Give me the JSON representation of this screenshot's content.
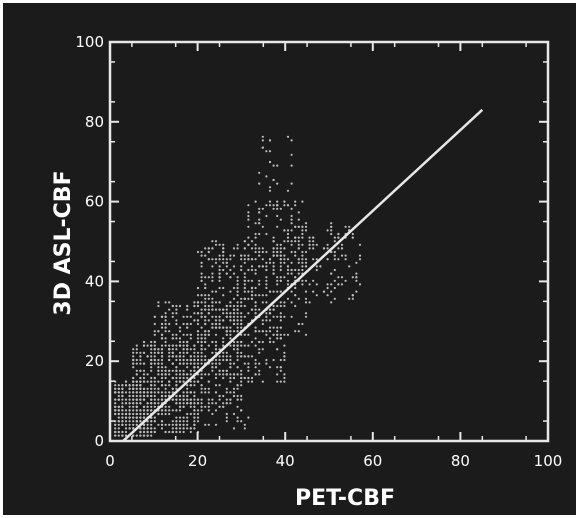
{
  "chart_data": {
    "type": "scatter",
    "title": "",
    "xlabel": "PET-CBF",
    "ylabel": "3D ASL-CBF",
    "xlim": [
      0,
      100
    ],
    "ylim": [
      0,
      100
    ],
    "xticks": [
      0,
      20,
      40,
      60,
      80,
      100
    ],
    "yticks": [
      0,
      20,
      40,
      60,
      80,
      100
    ],
    "grid": false,
    "legend": "none",
    "colors": {
      "background": "#1b1b1b",
      "foreground": "#e8e8e8"
    },
    "point_density_regions": [
      {
        "x_range": [
          0,
          10
        ],
        "y_range": [
          0,
          15
        ],
        "density": "dense"
      },
      {
        "x_range": [
          5,
          20
        ],
        "y_range": [
          2,
          25
        ],
        "density": "dense"
      },
      {
        "x_range": [
          10,
          30
        ],
        "y_range": [
          8,
          35
        ],
        "density": "dense"
      },
      {
        "x_range": [
          20,
          40
        ],
        "y_range": [
          15,
          50
        ],
        "density": "dense"
      },
      {
        "x_range": [
          30,
          45
        ],
        "y_range": [
          25,
          60
        ],
        "density": "moderate"
      },
      {
        "x_range": [
          34,
          42
        ],
        "y_range": [
          55,
          77
        ],
        "density": "sparse"
      },
      {
        "x_range": [
          40,
          57
        ],
        "y_range": [
          35,
          55
        ],
        "density": "moderate"
      },
      {
        "x_range": [
          15,
          32
        ],
        "y_range": [
          3,
          10
        ],
        "density": "sparse"
      }
    ],
    "regression_line": {
      "x": [
        3,
        85
      ],
      "y": [
        0,
        83
      ]
    }
  }
}
